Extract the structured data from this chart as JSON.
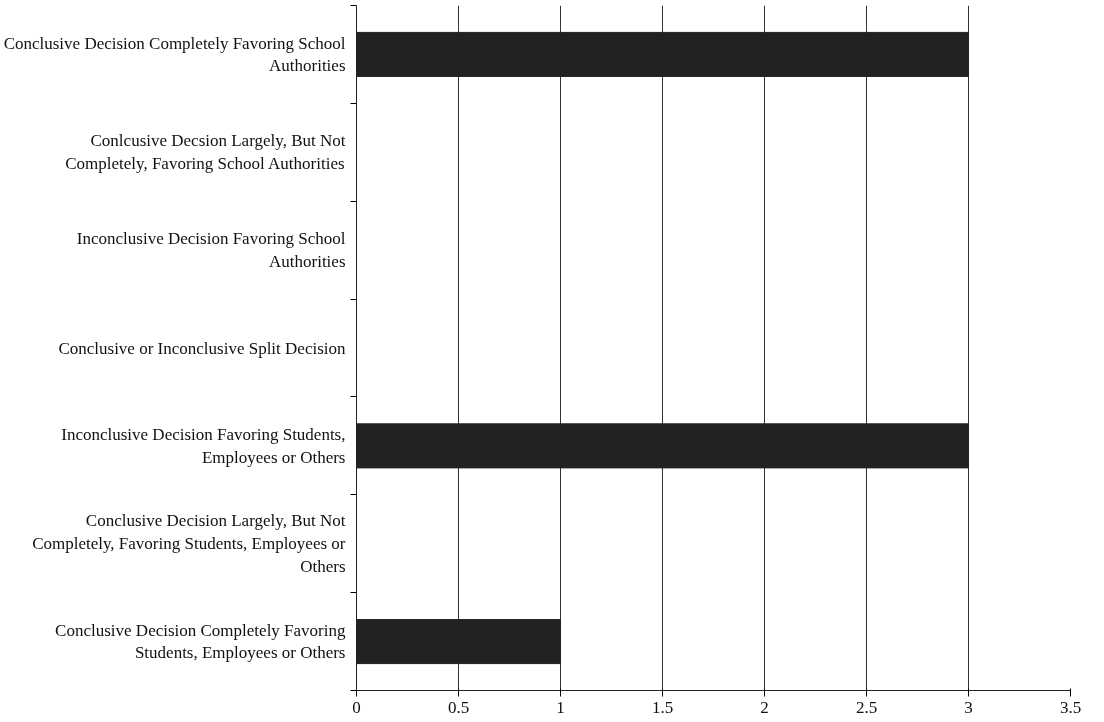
{
  "chart_data": {
    "type": "bar",
    "orientation": "horizontal",
    "categories": [
      "Conclusive Decision Completely Favoring School Authorities",
      "Conlcusive Decsion Largely, But Not Completely, Favoring School Authorities",
      "Inconclusive Decision Favoring School Authorities",
      "Conclusive or Inconclusive Split Decision",
      "Inconclusive Decision Favoring Students, Employees or Others",
      "Conclusive Decision Largely, But Not Completely, Favoring Students, Employees or Others",
      "Conclusive Decision Completely Favoring Students, Employees or Others"
    ],
    "values": [
      3,
      0,
      0,
      0,
      3,
      0,
      1
    ],
    "color": "#222222",
    "xlim": [
      0,
      3.5
    ],
    "xticks": [
      0,
      0.5,
      1,
      1.5,
      2,
      2.5,
      3,
      3.5
    ],
    "grid": "x"
  }
}
